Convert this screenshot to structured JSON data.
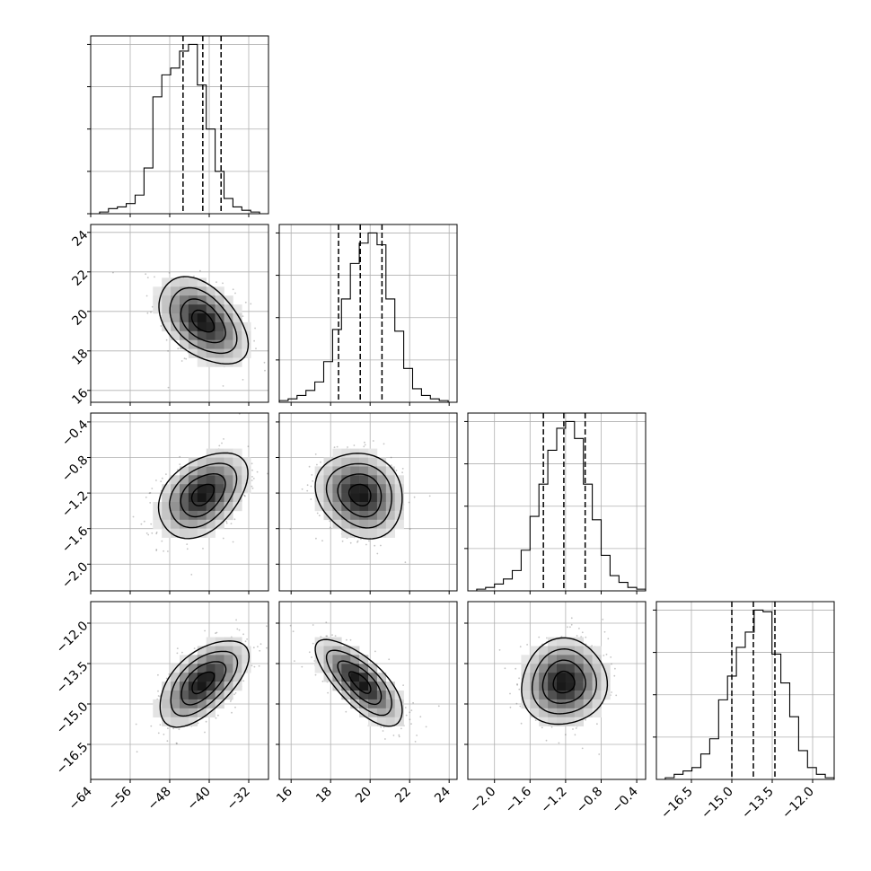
{
  "chart_data": {
    "type": "corner",
    "n_params": 4,
    "grid": true,
    "hist_bins": 20,
    "params": [
      {
        "range": [
          -64,
          -28
        ],
        "ticks": [
          -64,
          -56,
          -48,
          -40,
          -32
        ],
        "tick_labels": [
          "−64",
          "−56",
          "−48",
          "−40",
          "−32"
        ],
        "quantiles": [
          -45.3,
          -41.3,
          -37.6
        ],
        "hist": [
          0.0,
          0.01,
          0.03,
          0.04,
          0.06,
          0.11,
          0.27,
          0.69,
          0.82,
          0.86,
          0.96,
          1.0,
          0.76,
          0.5,
          0.25,
          0.09,
          0.04,
          0.02,
          0.01,
          0.0
        ],
        "hist_yticks": [
          0.25,
          0.5,
          0.75,
          1.0
        ],
        "mean": -41.3,
        "sd": 4.5
      },
      {
        "range": [
          15.4,
          24.4
        ],
        "ticks": [
          16,
          18,
          20,
          22,
          24
        ],
        "tick_labels": [
          "16",
          "18",
          "20",
          "22",
          "24"
        ],
        "quantiles": [
          18.4,
          19.5,
          20.6
        ],
        "hist": [
          0.01,
          0.02,
          0.04,
          0.07,
          0.12,
          0.24,
          0.43,
          0.61,
          0.82,
          0.94,
          1.0,
          0.93,
          0.61,
          0.42,
          0.2,
          0.08,
          0.04,
          0.02,
          0.01,
          0.0
        ],
        "hist_yticks": [
          0.25,
          0.5,
          0.75,
          1.0
        ],
        "mean": 19.5,
        "sd": 1.1
      },
      {
        "range": [
          -2.3,
          -0.3
        ],
        "ticks": [
          -2.0,
          -1.6,
          -1.2,
          -0.8,
          -0.4
        ],
        "tick_labels": [
          "−2.0",
          "−1.6",
          "−1.2",
          "−0.8",
          "−0.4"
        ],
        "quantiles": [
          -1.45,
          -1.22,
          -0.98
        ],
        "hist": [
          0.0,
          0.01,
          0.02,
          0.04,
          0.07,
          0.12,
          0.24,
          0.44,
          0.63,
          0.83,
          0.96,
          1.0,
          0.9,
          0.63,
          0.42,
          0.21,
          0.09,
          0.05,
          0.02,
          0.01
        ],
        "hist_yticks": [
          0.25,
          0.5,
          0.75,
          1.0
        ],
        "mean": -1.22,
        "sd": 0.24
      },
      {
        "range": [
          -17.8,
          -11.2
        ],
        "ticks": [
          -16.5,
          -15.0,
          -13.5,
          -12.0
        ],
        "tick_labels": [
          "−16.5",
          "−15.0",
          "−13.5",
          "−12.0"
        ],
        "quantiles": [
          -15.0,
          -14.2,
          -13.4
        ],
        "hist": [
          0.0,
          0.01,
          0.03,
          0.05,
          0.07,
          0.15,
          0.24,
          0.47,
          0.61,
          0.78,
          0.87,
          1.0,
          0.99,
          0.74,
          0.57,
          0.37,
          0.17,
          0.07,
          0.03,
          0.01
        ],
        "hist_yticks": [
          0.25,
          0.5,
          0.75,
          1.0
        ],
        "mean": -14.2,
        "sd": 0.8
      }
    ],
    "correlations": [
      [
        1.0,
        -0.45,
        0.4,
        0.58
      ],
      [
        -0.45,
        1.0,
        -0.15,
        -0.72
      ],
      [
        0.4,
        -0.15,
        1.0,
        0.05
      ],
      [
        0.58,
        -0.72,
        0.05,
        1.0
      ]
    ],
    "contour_levels": [
      0.5,
      1.0,
      1.5,
      2.0
    ],
    "density_bins": 20,
    "scatter_points": 500
  }
}
